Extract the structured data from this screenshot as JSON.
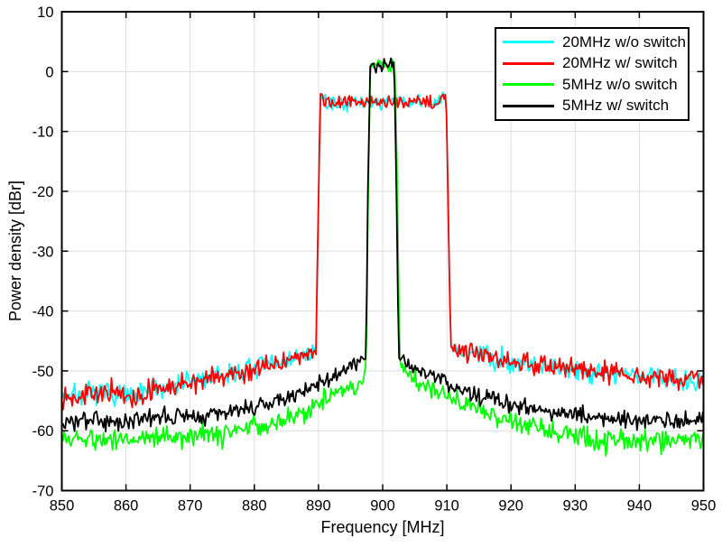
{
  "chart_data": {
    "type": "line",
    "title": "",
    "xlabel": "Frequency [MHz]",
    "ylabel": "Power density [dBr]",
    "xlim": [
      850,
      950
    ],
    "ylim": [
      -70,
      10
    ],
    "xticks": [
      850,
      860,
      870,
      880,
      890,
      900,
      910,
      920,
      930,
      940,
      950
    ],
    "yticks": [
      -70,
      -60,
      -50,
      -40,
      -30,
      -20,
      -10,
      0,
      10
    ],
    "grid": true,
    "grid_color": "#dedede",
    "axis_color": "#000000",
    "background_color": "#ffffff",
    "legend_position": "northeast",
    "sample_step_mhz": 0.18,
    "series_note": "envelope entries are [frequency_MHz, mean_power_dBr, noise_sigma_dB]; traces are noisy spectra around these mean levels",
    "series": [
      {
        "name": "20MHz w/o switch",
        "color": "#00ffff",
        "seed": 7,
        "envelope": [
          [
            850,
            -54.0,
            0.95
          ],
          [
            855,
            -54.0,
            0.95
          ],
          [
            858,
            -53.6,
            0.95
          ],
          [
            861,
            -54.6,
            0.95
          ],
          [
            864,
            -53.2,
            0.95
          ],
          [
            870,
            -51.8,
            0.95
          ],
          [
            875,
            -50.8,
            0.9
          ],
          [
            880,
            -49.6,
            0.9
          ],
          [
            885,
            -48.2,
            0.85
          ],
          [
            888,
            -47.4,
            0.8
          ],
          [
            889.6,
            -46.8,
            0.5
          ],
          [
            889.95,
            -25,
            0.3
          ],
          [
            890.3,
            -3.9,
            0.3
          ],
          [
            891.0,
            -5.2,
            0.6
          ],
          [
            908.8,
            -5.2,
            0.6
          ],
          [
            909.4,
            -3.9,
            0.35
          ],
          [
            909.9,
            -4.6,
            0.3
          ],
          [
            910.25,
            -25,
            0.3
          ],
          [
            910.6,
            -46.1,
            0.5
          ],
          [
            913,
            -46.8,
            0.85
          ],
          [
            916,
            -47.5,
            0.9
          ],
          [
            920,
            -48.4,
            0.95
          ],
          [
            925,
            -49.1,
            0.95
          ],
          [
            930,
            -49.8,
            0.95
          ],
          [
            935,
            -50.3,
            0.95
          ],
          [
            940,
            -50.8,
            0.95
          ],
          [
            945,
            -51.2,
            0.95
          ],
          [
            950,
            -51.5,
            0.95
          ]
        ]
      },
      {
        "name": "20MHz w/ switch",
        "color": "#ff0000",
        "seed": 13,
        "envelope": [
          [
            850,
            -54.1,
            0.85
          ],
          [
            855,
            -53.9,
            0.85
          ],
          [
            858,
            -53.5,
            0.85
          ],
          [
            861,
            -54.9,
            0.9
          ],
          [
            864,
            -53.3,
            0.85
          ],
          [
            870,
            -51.9,
            0.85
          ],
          [
            875,
            -50.9,
            0.85
          ],
          [
            880,
            -49.7,
            0.8
          ],
          [
            885,
            -48.3,
            0.75
          ],
          [
            888,
            -47.5,
            0.7
          ],
          [
            889.6,
            -46.9,
            0.5
          ],
          [
            889.95,
            -25,
            0.3
          ],
          [
            890.3,
            -3.8,
            0.3
          ],
          [
            891.0,
            -5.1,
            0.55
          ],
          [
            908.8,
            -5.1,
            0.55
          ],
          [
            909.4,
            -3.8,
            0.35
          ],
          [
            909.9,
            -4.5,
            0.3
          ],
          [
            910.25,
            -25,
            0.3
          ],
          [
            910.6,
            -46.0,
            0.5
          ],
          [
            913,
            -46.7,
            0.75
          ],
          [
            916,
            -47.4,
            0.8
          ],
          [
            920,
            -48.3,
            0.85
          ],
          [
            925,
            -49.0,
            0.85
          ],
          [
            930,
            -49.7,
            0.85
          ],
          [
            935,
            -50.2,
            0.85
          ],
          [
            940,
            -50.7,
            0.85
          ],
          [
            945,
            -51.1,
            0.85
          ],
          [
            950,
            -51.4,
            0.85
          ]
        ]
      },
      {
        "name": "5MHz w/o switch",
        "color": "#00ff00",
        "seed": 5,
        "envelope": [
          [
            850,
            -61.3,
            0.95
          ],
          [
            855,
            -61.4,
            0.95
          ],
          [
            860,
            -61.2,
            0.95
          ],
          [
            865,
            -61.0,
            0.95
          ],
          [
            870,
            -60.8,
            0.95
          ],
          [
            875,
            -60.4,
            0.95
          ],
          [
            880,
            -59.5,
            0.9
          ],
          [
            883,
            -58.6,
            0.9
          ],
          [
            886,
            -57.6,
            0.9
          ],
          [
            888,
            -56.7,
            0.85
          ],
          [
            890,
            -55.2,
            0.85
          ],
          [
            892,
            -54.2,
            0.8
          ],
          [
            894,
            -53.3,
            0.8
          ],
          [
            896,
            -52.4,
            0.7
          ],
          [
            897.1,
            -50.5,
            0.5
          ],
          [
            897.45,
            -48.9,
            0.35
          ],
          [
            897.75,
            -20,
            0.3
          ],
          [
            898.1,
            1.3,
            0.5
          ],
          [
            901.9,
            1.3,
            0.5
          ],
          [
            902.3,
            -20,
            0.3
          ],
          [
            902.65,
            -48.6,
            0.35
          ],
          [
            903.3,
            -49.6,
            0.5
          ],
          [
            904.5,
            -50.8,
            0.7
          ],
          [
            906,
            -51.9,
            0.8
          ],
          [
            908,
            -53.1,
            0.85
          ],
          [
            910,
            -54.3,
            0.85
          ],
          [
            912.5,
            -55.6,
            0.9
          ],
          [
            915,
            -56.6,
            0.9
          ],
          [
            918,
            -57.8,
            0.9
          ],
          [
            921,
            -58.8,
            0.95
          ],
          [
            925,
            -59.9,
            0.95
          ],
          [
            928,
            -60.5,
            0.95
          ],
          [
            931,
            -61.0,
            1.0
          ],
          [
            933.5,
            -62.2,
            1.1
          ],
          [
            936,
            -61.4,
            1.0
          ],
          [
            940,
            -61.6,
            0.95
          ],
          [
            945,
            -61.5,
            0.95
          ],
          [
            950,
            -61.2,
            0.95
          ]
        ]
      },
      {
        "name": "5MHz w/ switch",
        "color": "#000000",
        "seed": 3,
        "envelope": [
          [
            850,
            -58.6,
            0.75
          ],
          [
            855,
            -58.5,
            0.75
          ],
          [
            860,
            -58.3,
            0.75
          ],
          [
            865,
            -58.0,
            0.75
          ],
          [
            870,
            -57.4,
            0.75
          ],
          [
            875,
            -56.9,
            0.75
          ],
          [
            880,
            -56.1,
            0.75
          ],
          [
            883,
            -55.3,
            0.7
          ],
          [
            886,
            -54.3,
            0.7
          ],
          [
            888,
            -52.9,
            0.7
          ],
          [
            890,
            -52.3,
            0.7
          ],
          [
            892,
            -51.2,
            0.65
          ],
          [
            894,
            -50.0,
            0.6
          ],
          [
            896,
            -48.7,
            0.55
          ],
          [
            897.05,
            -48.0,
            0.4
          ],
          [
            897.4,
            -47.6,
            0.3
          ],
          [
            897.7,
            -20,
            0.3
          ],
          [
            898.05,
            0.6,
            0.3
          ],
          [
            898.5,
            1.9,
            0.35
          ],
          [
            899.0,
            0.6,
            0.35
          ],
          [
            899.45,
            1.8,
            0.35
          ],
          [
            899.9,
            0.5,
            0.35
          ],
          [
            900.35,
            1.9,
            0.35
          ],
          [
            900.85,
            0.7,
            0.35
          ],
          [
            901.3,
            1.8,
            0.35
          ],
          [
            901.8,
            1.2,
            0.35
          ],
          [
            902.15,
            -20,
            0.3
          ],
          [
            902.5,
            -47.6,
            0.3
          ],
          [
            903,
            -48.3,
            0.45
          ],
          [
            904.5,
            -49.3,
            0.6
          ],
          [
            906,
            -50.3,
            0.65
          ],
          [
            908,
            -51.2,
            0.7
          ],
          [
            910,
            -51.9,
            0.7
          ],
          [
            912.5,
            -53.2,
            0.75
          ],
          [
            915,
            -54.1,
            0.75
          ],
          [
            918,
            -55.0,
            0.75
          ],
          [
            921,
            -55.8,
            0.75
          ],
          [
            925,
            -56.8,
            0.75
          ],
          [
            930,
            -57.4,
            0.75
          ],
          [
            935,
            -57.9,
            0.75
          ],
          [
            940,
            -58.2,
            0.75
          ],
          [
            945,
            -58.4,
            0.75
          ],
          [
            950,
            -58.5,
            0.75
          ]
        ]
      }
    ]
  }
}
